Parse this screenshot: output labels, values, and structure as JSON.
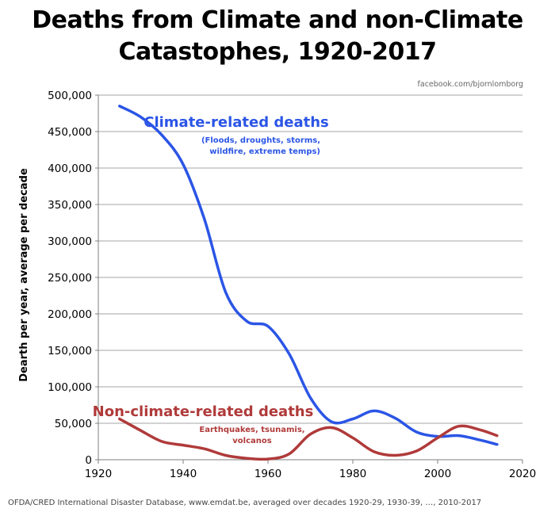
{
  "title_line1": "Deaths from Climate and non-Climate",
  "title_line2": "Catastophes, 1920-2017",
  "watermark": "facebook.com/bjornlomborg",
  "source_note": "OFDA/CRED  International Disaster Database, www.emdat.be, averaged over decades 1920-29,  1930-39, …, 2010-2017",
  "chart_data": {
    "type": "line",
    "ylabel": "Dearth per year, average per decade",
    "xlabel": "",
    "xlim": [
      1920,
      2020
    ],
    "ylim": [
      0,
      500000
    ],
    "x_ticks": [
      "1920",
      "1940",
      "1960",
      "1980",
      "2000",
      "2020"
    ],
    "y_ticks": [
      "0",
      "50,000",
      "100,000",
      "150,000",
      "200,000",
      "250,000",
      "300,000",
      "350,000",
      "400,000",
      "450,000",
      "500,000"
    ],
    "grid": "horizontal",
    "series": [
      {
        "name": "Climate-related deaths",
        "subtitle_lines": [
          "(Floods, droughts, storms,",
          "wildfire, extreme temps)"
        ],
        "color": "#2b55e6",
        "points": [
          [
            1925,
            485000
          ],
          [
            1930,
            470000
          ],
          [
            1935,
            445000
          ],
          [
            1940,
            405000
          ],
          [
            1945,
            330000
          ],
          [
            1950,
            230000
          ],
          [
            1955,
            190000
          ],
          [
            1960,
            183000
          ],
          [
            1965,
            145000
          ],
          [
            1970,
            85000
          ],
          [
            1975,
            52000
          ],
          [
            1980,
            56000
          ],
          [
            1985,
            67000
          ],
          [
            1990,
            57000
          ],
          [
            1995,
            38000
          ],
          [
            2000,
            32000
          ],
          [
            2005,
            33000
          ],
          [
            2010,
            27000
          ],
          [
            2014,
            21000
          ]
        ]
      },
      {
        "name": "Non-climate-related deaths",
        "subtitle_lines": [
          "Earthquakes, tsunamis,",
          "volcanos"
        ],
        "color": "#b03a3a",
        "points": [
          [
            1925,
            56000
          ],
          [
            1930,
            40000
          ],
          [
            1935,
            25000
          ],
          [
            1940,
            20000
          ],
          [
            1945,
            15000
          ],
          [
            1950,
            6000
          ],
          [
            1955,
            2000
          ],
          [
            1960,
            1000
          ],
          [
            1965,
            8000
          ],
          [
            1970,
            35000
          ],
          [
            1975,
            44000
          ],
          [
            1980,
            30000
          ],
          [
            1985,
            11000
          ],
          [
            1990,
            6000
          ],
          [
            1995,
            12000
          ],
          [
            2000,
            30000
          ],
          [
            2005,
            46000
          ],
          [
            2010,
            41000
          ],
          [
            2014,
            33000
          ]
        ]
      }
    ]
  }
}
